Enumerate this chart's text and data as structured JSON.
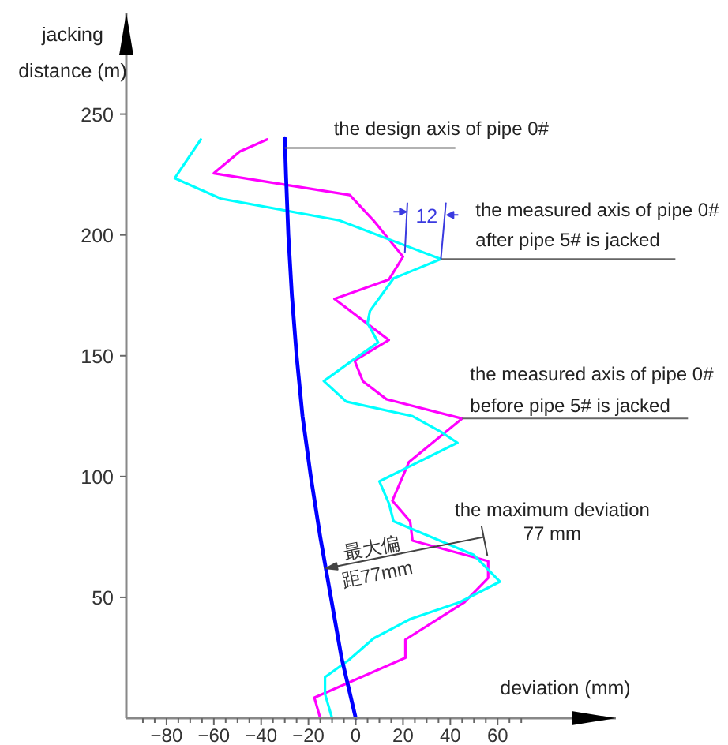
{
  "chart_data": {
    "type": "line",
    "xlabel": "deviation (mm)",
    "ylabel": "jacking\ndistance (m)",
    "xlim": [
      -97,
      110
    ],
    "ylim": [
      0,
      292
    ],
    "xticks": [
      {
        "value": -90,
        "label": null
      },
      {
        "value": -85,
        "label": null
      },
      -80,
      {
        "value": -75,
        "label": null
      },
      {
        "value": -70,
        "label": null
      },
      {
        "value": -65,
        "label": null
      },
      -60,
      {
        "value": -55,
        "label": null
      },
      {
        "value": -50,
        "label": null
      },
      {
        "value": -45,
        "label": null
      },
      -40,
      {
        "value": -35,
        "label": null
      },
      {
        "value": -30,
        "label": null
      },
      {
        "value": -25,
        "label": null
      },
      -20,
      {
        "value": -15,
        "label": null
      },
      {
        "value": -10,
        "label": null
      },
      {
        "value": -5,
        "label": null
      },
      0,
      {
        "value": 5,
        "label": null
      },
      {
        "value": 10,
        "label": null
      },
      {
        "value": 15,
        "label": null
      },
      20,
      {
        "value": 25,
        "label": null
      },
      {
        "value": 30,
        "label": null
      },
      {
        "value": 35,
        "label": null
      },
      40,
      {
        "value": 45,
        "label": null
      },
      {
        "value": 50,
        "label": null
      },
      {
        "value": 55,
        "label": null
      },
      60,
      {
        "value": 65,
        "label": null
      },
      {
        "value": 70,
        "label": null
      }
    ],
    "yticks": [
      50,
      100,
      150,
      200,
      250
    ],
    "line_style": "solid",
    "series": [
      {
        "color": "#ff00ff",
        "x": [
          -15,
          -17.5,
          21,
          21,
          46,
          56,
          56,
          24,
          23,
          15.5,
          22.5,
          45,
          13,
          3,
          -0.5,
          14,
          -9,
          14,
          20,
          7.5,
          -2.5,
          -60,
          -49,
          -37.5
        ],
        "values": [
          0,
          8.5,
          25,
          32.5,
          48,
          58,
          65,
          73.5,
          81.5,
          90,
          106,
          124,
          132,
          139.5,
          148,
          156.5,
          173.5,
          181.5,
          191,
          206,
          216.5,
          225.5,
          234.5,
          239.5
        ]
      },
      {
        "color": "#00ffff",
        "x": [
          -10,
          -13,
          -13,
          -3,
          7.5,
          23,
          44,
          61,
          50,
          16,
          14,
          10,
          43,
          36,
          24,
          -4,
          -13.5,
          -1.5,
          9.5,
          5,
          6,
          16,
          36,
          -7,
          -57,
          -76.5,
          -65.5
        ],
        "values": [
          0,
          10,
          17,
          24,
          33,
          41,
          48,
          56.5,
          67.5,
          81.5,
          89,
          98,
          114,
          118.5,
          125,
          131,
          139.5,
          148,
          155.5,
          163.5,
          168.5,
          182,
          190,
          206,
          215,
          223.5,
          239.5
        ]
      },
      {
        "color": "#0000ff",
        "x": [
          0,
          -6,
          -10.5,
          -15,
          -19,
          -22.5,
          -25,
          -27,
          -28.5,
          -29.5,
          -30
        ],
        "values": [
          0,
          25,
          50,
          75,
          100,
          125,
          150,
          175,
          200,
          225,
          240
        ]
      }
    ],
    "annotations": [
      {
        "text": "the design axis of pipe 0#",
        "x": -30,
        "y": 236
      },
      {
        "text": "the measured axis of pipe 0#\nafter pipe 5# is jacked",
        "x": 36,
        "y": 190
      },
      {
        "text": "the measured axis of pipe 0#\nbefore pipe 5# is jacked",
        "x": 45,
        "y": 124
      },
      {
        "text": "12",
        "x": 36,
        "y": 190
      },
      {
        "text": "最大偏距77mm",
        "x": -12.5,
        "y": 62
      },
      {
        "text": "the maximum deviation\n77 mm",
        "x": 56,
        "y": 65
      }
    ]
  }
}
